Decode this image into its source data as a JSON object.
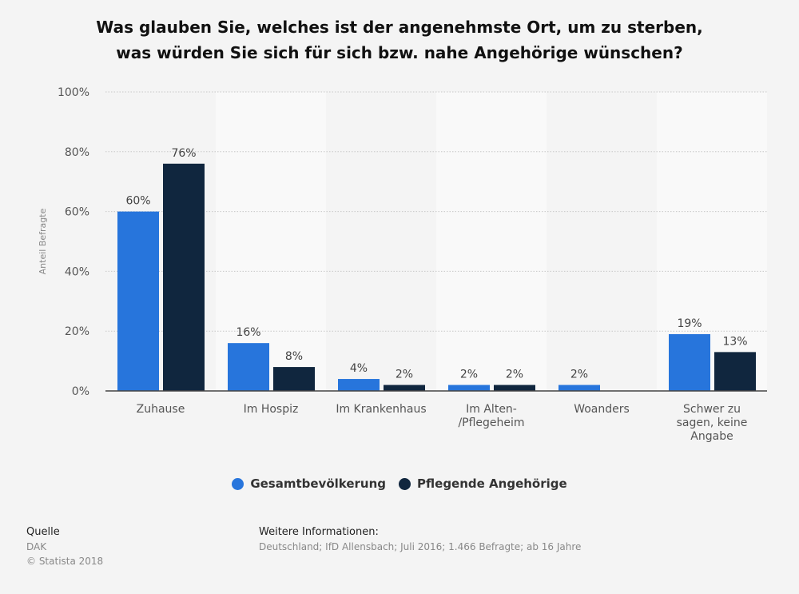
{
  "chart_data": {
    "type": "bar",
    "title": "Was glauben Sie, welches ist der angenehmste Ort, um zu sterben, was würden Sie sich für sich bzw. nahe Angehörige wünschen?",
    "title_lines": [
      "Was glauben Sie, welches ist der angenehmste Ort, um zu sterben,",
      "was würden Sie sich für sich bzw. nahe Angehörige wünschen?"
    ],
    "categories": [
      "Zuhause",
      "Im Hospiz",
      "Im Krankenhaus",
      "Im Alten-/Pflegeheim",
      "Woanders",
      "Schwer zu sagen, keine Angabe"
    ],
    "category_lines": [
      [
        "Zuhause"
      ],
      [
        "Im Hospiz"
      ],
      [
        "Im Krankenhaus"
      ],
      [
        "Im Alten-",
        "/Pflegeheim"
      ],
      [
        "Woanders"
      ],
      [
        "Schwer zu",
        "sagen, keine",
        "Angabe"
      ]
    ],
    "series": [
      {
        "name": "Gesamtbevölkerung",
        "color": "#2775dc",
        "values": [
          60,
          16,
          4,
          2,
          2,
          19
        ],
        "labels": [
          "60%",
          "16%",
          "4%",
          "2%",
          "2%",
          "19%"
        ]
      },
      {
        "name": "Pflegende Angehörige",
        "color": "#10263e",
        "values": [
          76,
          8,
          2,
          2,
          null,
          13
        ],
        "labels": [
          "76%",
          "8%",
          "2%",
          "2%",
          null,
          "13%"
        ]
      }
    ],
    "xlabel": "",
    "ylabel": "Anteil Befragte",
    "ylim": [
      0,
      100
    ],
    "yticks": [
      "0%",
      "20%",
      "40%",
      "60%",
      "80%",
      "100%"
    ],
    "grid": true,
    "legend_position": "bottom"
  },
  "footer": {
    "source_heading": "Quelle",
    "source": "DAK",
    "copyright": "© Statista 2018",
    "info_heading": "Weitere Informationen:",
    "info": "Deutschland; IfD Allensbach; Juli 2016; 1.466 Befragte; ab 16 Jahre"
  }
}
